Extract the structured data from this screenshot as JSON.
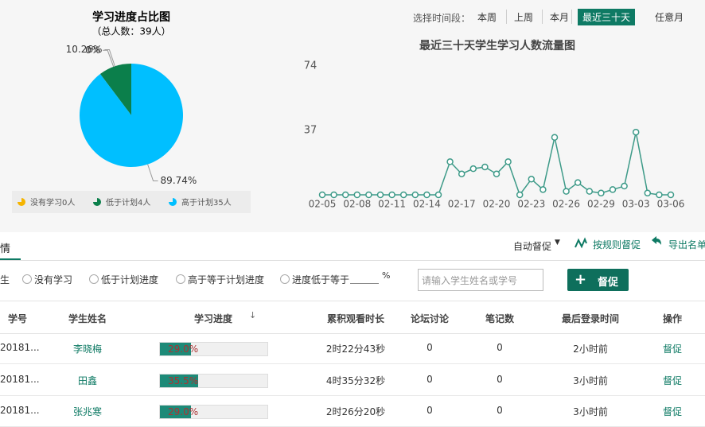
{
  "chart_data": [
    {
      "type": "pie",
      "title": "学习进度占比图",
      "subtitle": "（总人数：39人）",
      "categories": [
        "没有学习0人",
        "低于计划4人",
        "高于计划35人"
      ],
      "values": [
        0,
        10.26,
        89.74
      ],
      "value_labels": [
        "0%",
        "10.26%",
        "89.74%"
      ],
      "colors": [
        "#f5b400",
        "#0b7f4b",
        "#00bfff"
      ]
    },
    {
      "type": "line",
      "title": "最近三十天学生学习人数流量图",
      "categories": [
        "02-05",
        null,
        null,
        "02-08",
        null,
        null,
        "02-11",
        null,
        null,
        "02-14",
        null,
        null,
        "02-17",
        null,
        null,
        "02-20",
        null,
        null,
        "02-23",
        null,
        null,
        "02-26",
        null,
        null,
        "02-29",
        null,
        null,
        "03-03",
        null,
        null,
        "03-06"
      ],
      "series": [
        {
          "color": "#3d9a88",
          "values": [
            0,
            0,
            0,
            0,
            0,
            0,
            0,
            0,
            0,
            0,
            0,
            19,
            12,
            15,
            16,
            12,
            19,
            0,
            9,
            3,
            33,
            2,
            7,
            2,
            1,
            3,
            5,
            36,
            1,
            0,
            0
          ]
        }
      ],
      "ylim": [
        0,
        74
      ],
      "yticks": [
        37,
        74
      ]
    }
  ],
  "time_filter": {
    "label": "选择时间段：",
    "options": [
      "本周",
      "上周",
      "本月",
      "最近三十天",
      "任意月"
    ],
    "selected": 3
  },
  "tabs": {
    "active": "情"
  },
  "actions": [
    "自动督促",
    "按规则督促",
    "导出名单"
  ],
  "filters": {
    "lead": "生",
    "options": [
      "没有学习",
      "低于计划进度",
      "高于等于计划进度",
      "进度低于等于"
    ],
    "suffix": "%",
    "search_placeholder": "请输入学生姓名或学号",
    "button": "督促"
  },
  "table": {
    "headers": [
      "学号",
      "学生姓名",
      "学习进度",
      "累积观看时长",
      "论坛讨论",
      "笔记数",
      "最后登录时间",
      "操作"
    ],
    "rows": [
      [
        "20181...",
        "李晓梅",
        {
          "value": 29,
          "label": "29.0%"
        },
        "2时22分43秒",
        0,
        0,
        "2小时前",
        "督促"
      ],
      [
        "20181...",
        "田鑫",
        {
          "value": 35.5,
          "label": "35.5%"
        },
        "4时35分32秒",
        0,
        0,
        "3小时前",
        "督促"
      ],
      [
        "20181...",
        "张兆寒",
        {
          "value": 29,
          "label": "29.0%"
        },
        "2时26分20秒",
        0,
        0,
        "3小时前",
        "督促"
      ]
    ]
  }
}
